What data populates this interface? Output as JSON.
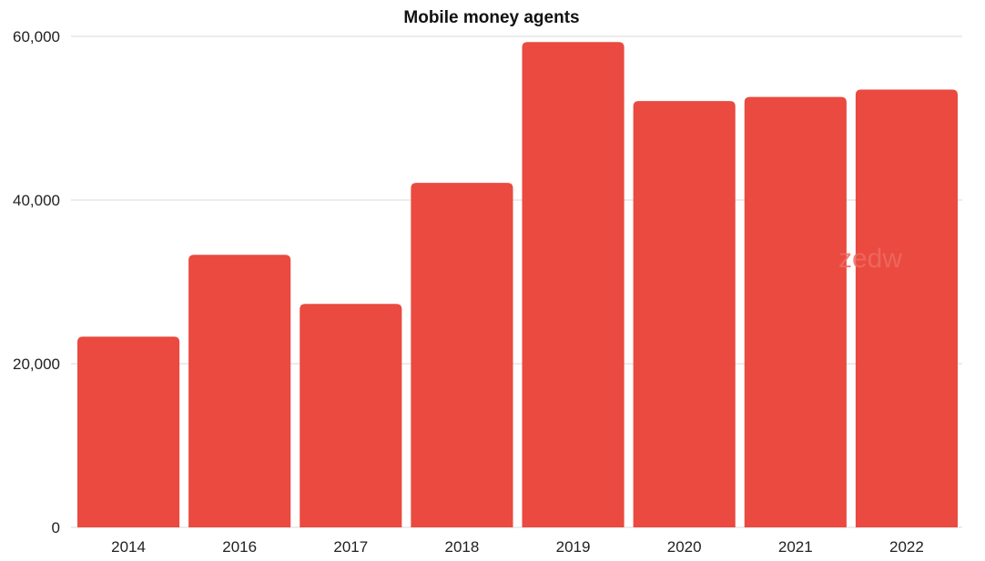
{
  "chart_data": {
    "type": "bar",
    "title": "Mobile money agents",
    "xlabel": "",
    "ylabel": "",
    "categories": [
      "2014",
      "2016",
      "2017",
      "2018",
      "2019",
      "2020",
      "2021",
      "2022"
    ],
    "series": [
      {
        "values": [
          23300,
          33300,
          27300,
          42100,
          59300,
          52100,
          52600,
          53500
        ],
        "color": "#ea4a40"
      }
    ],
    "ylim": [
      0,
      60000
    ],
    "yticks": [
      0,
      20000,
      40000,
      60000
    ],
    "ytick_labels": [
      "0",
      "20,000",
      "40,000",
      "60,000"
    ],
    "grid": true,
    "legend": "none"
  },
  "watermark": {
    "text": "zedw",
    "icon": "sunburst-icon",
    "color": "#ea4a40"
  }
}
